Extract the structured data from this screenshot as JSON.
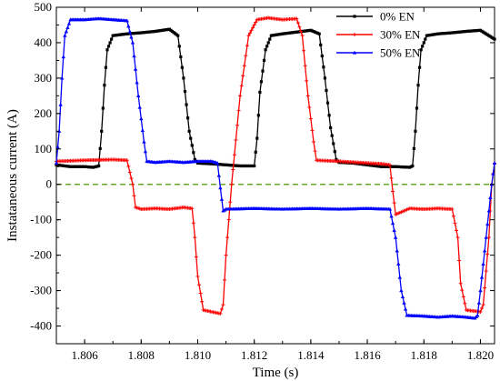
{
  "chart_data": {
    "type": "line",
    "title": "",
    "xlabel": "Time (s)",
    "ylabel": "Instataneous current (A)",
    "xlim": [
      1.805,
      1.8205
    ],
    "ylim": [
      -450,
      500
    ],
    "x_ticks": [
      1.806,
      1.808,
      1.81,
      1.812,
      1.814,
      1.816,
      1.818,
      1.82
    ],
    "x_tick_labels": [
      "1.806",
      "1.808",
      "1.810",
      "1.812",
      "1.814",
      "1.816",
      "1.818",
      "1.820"
    ],
    "y_ticks": [
      -400,
      -300,
      -200,
      -100,
      0,
      100,
      200,
      300,
      400,
      500
    ],
    "y_tick_labels": [
      "-400",
      "-300",
      "-200",
      "-100",
      "0",
      "100",
      "200",
      "300",
      "400",
      "500"
    ],
    "grid": false,
    "legend_position": "top-right",
    "reference_line": {
      "y": 0,
      "color": "#6aaa2a",
      "style": "dashed"
    },
    "series": [
      {
        "name": "0% EN",
        "color": "#000000",
        "marker": "square",
        "points": [
          [
            1.805,
            55
          ],
          [
            1.8055,
            50
          ],
          [
            1.806,
            50
          ],
          [
            1.8063,
            48
          ],
          [
            1.8065,
            52
          ],
          [
            1.8066,
            150
          ],
          [
            1.8067,
            280
          ],
          [
            1.8068,
            380
          ],
          [
            1.807,
            420
          ],
          [
            1.8075,
            425
          ],
          [
            1.808,
            428
          ],
          [
            1.8085,
            432
          ],
          [
            1.809,
            438
          ],
          [
            1.8093,
            420
          ],
          [
            1.8095,
            300
          ],
          [
            1.8097,
            150
          ],
          [
            1.8099,
            70
          ],
          [
            1.81,
            60
          ],
          [
            1.8105,
            58
          ],
          [
            1.811,
            55
          ],
          [
            1.8115,
            52
          ],
          [
            1.812,
            52
          ],
          [
            1.8121,
            130
          ],
          [
            1.8122,
            260
          ],
          [
            1.8124,
            380
          ],
          [
            1.8126,
            420
          ],
          [
            1.813,
            425
          ],
          [
            1.8135,
            430
          ],
          [
            1.814,
            435
          ],
          [
            1.8143,
            425
          ],
          [
            1.8145,
            300
          ],
          [
            1.8147,
            160
          ],
          [
            1.8149,
            70
          ],
          [
            1.815,
            62
          ],
          [
            1.8155,
            60
          ],
          [
            1.816,
            55
          ],
          [
            1.8165,
            50
          ],
          [
            1.817,
            50
          ],
          [
            1.8175,
            48
          ],
          [
            1.8176,
            52
          ],
          [
            1.8177,
            150
          ],
          [
            1.8178,
            280
          ],
          [
            1.8179,
            380
          ],
          [
            1.8181,
            420
          ],
          [
            1.8185,
            425
          ],
          [
            1.819,
            428
          ],
          [
            1.8195,
            432
          ],
          [
            1.82,
            435
          ],
          [
            1.8205,
            410
          ]
        ]
      },
      {
        "name": "30% EN",
        "color": "#ff0000",
        "marker": "plus",
        "points": [
          [
            1.805,
            65
          ],
          [
            1.806,
            68
          ],
          [
            1.807,
            70
          ],
          [
            1.8075,
            68
          ],
          [
            1.8077,
            0
          ],
          [
            1.8078,
            -65
          ],
          [
            1.808,
            -70
          ],
          [
            1.8085,
            -68
          ],
          [
            1.809,
            -70
          ],
          [
            1.8095,
            -65
          ],
          [
            1.8098,
            -68
          ],
          [
            1.8099,
            -150
          ],
          [
            1.81,
            -260
          ],
          [
            1.8102,
            -355
          ],
          [
            1.8105,
            -360
          ],
          [
            1.8108,
            -365
          ],
          [
            1.8109,
            -340
          ],
          [
            1.811,
            -200
          ],
          [
            1.8112,
            0
          ],
          [
            1.8115,
            250
          ],
          [
            1.8118,
            420
          ],
          [
            1.8121,
            465
          ],
          [
            1.8125,
            470
          ],
          [
            1.813,
            465
          ],
          [
            1.8135,
            468
          ],
          [
            1.8137,
            420
          ],
          [
            1.8139,
            250
          ],
          [
            1.8141,
            120
          ],
          [
            1.8142,
            68
          ],
          [
            1.815,
            65
          ],
          [
            1.816,
            60
          ],
          [
            1.8165,
            58
          ],
          [
            1.8168,
            55
          ],
          [
            1.8169,
            -20
          ],
          [
            1.817,
            -85
          ],
          [
            1.8175,
            -68
          ],
          [
            1.818,
            -70
          ],
          [
            1.8185,
            -68
          ],
          [
            1.819,
            -70
          ],
          [
            1.8192,
            -150
          ],
          [
            1.8193,
            -280
          ],
          [
            1.8195,
            -355
          ],
          [
            1.82,
            -360
          ],
          [
            1.8201,
            -340
          ],
          [
            1.8203,
            -150
          ],
          [
            1.8204,
            0
          ],
          [
            1.8205,
            60
          ]
        ]
      },
      {
        "name": "50% EN",
        "color": "#0000ff",
        "marker": "triangle",
        "points": [
          [
            1.805,
            60
          ],
          [
            1.8051,
            150
          ],
          [
            1.8052,
            300
          ],
          [
            1.8053,
            420
          ],
          [
            1.8055,
            465
          ],
          [
            1.806,
            465
          ],
          [
            1.8065,
            468
          ],
          [
            1.807,
            465
          ],
          [
            1.8075,
            462
          ],
          [
            1.8077,
            400
          ],
          [
            1.8079,
            250
          ],
          [
            1.8081,
            120
          ],
          [
            1.8082,
            65
          ],
          [
            1.8085,
            62
          ],
          [
            1.809,
            65
          ],
          [
            1.8095,
            62
          ],
          [
            1.81,
            65
          ],
          [
            1.8105,
            65
          ],
          [
            1.8107,
            60
          ],
          [
            1.8108,
            -10
          ],
          [
            1.8109,
            -75
          ],
          [
            1.811,
            -70
          ],
          [
            1.812,
            -68
          ],
          [
            1.813,
            -70
          ],
          [
            1.814,
            -68
          ],
          [
            1.815,
            -70
          ],
          [
            1.816,
            -68
          ],
          [
            1.8168,
            -70
          ],
          [
            1.817,
            -150
          ],
          [
            1.8172,
            -300
          ],
          [
            1.8174,
            -370
          ],
          [
            1.818,
            -372
          ],
          [
            1.8185,
            -375
          ],
          [
            1.819,
            -372
          ],
          [
            1.8195,
            -375
          ],
          [
            1.8198,
            -378
          ],
          [
            1.8199,
            -370
          ],
          [
            1.82,
            -300
          ],
          [
            1.8202,
            -150
          ],
          [
            1.8204,
            0
          ],
          [
            1.8205,
            60
          ]
        ]
      }
    ]
  }
}
